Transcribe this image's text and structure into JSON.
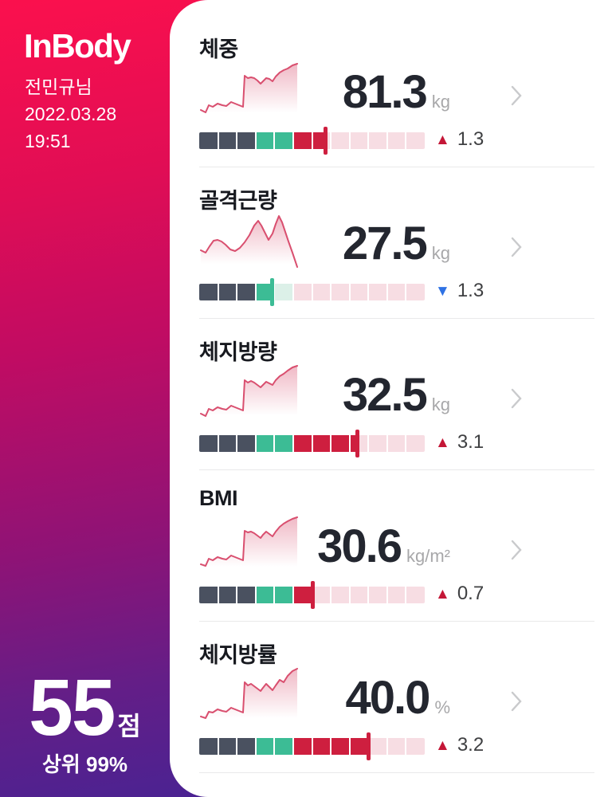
{
  "sidebar": {
    "logo": "InBody",
    "user_name": "전민규님",
    "date": "2022.03.28",
    "time": "19:51",
    "score_value": "55",
    "score_unit": "점",
    "percentile": "상위 99%"
  },
  "colors": {
    "gradient_top": "#fb104d",
    "gradient_bottom": "#3c2598",
    "card_background": "#ffffff",
    "title_text": "#17191f",
    "value_text": "#23262f",
    "unit_text": "#a8a8aa",
    "divider": "#e9e9ea",
    "sparkline": "#d94f6f",
    "segment_dark": "#4a5160",
    "segment_green": "#3cbc95",
    "segment_red": "#ce1f3f",
    "segment_pale_pink": "#f7dde3",
    "segment_pale_green": "#dcf0e8",
    "increase": "#c41737",
    "decrease": "#2f72e4",
    "chevron": "#c9cacc"
  },
  "metrics": [
    {
      "title": "체중",
      "value": "81.3",
      "unit": "kg",
      "change_symbol": "▲",
      "change_value": "1.3",
      "change_color": "#c41737",
      "marker": 0.56,
      "marker_color": "#ce1f3f",
      "stops": [
        [
          "#4a5160",
          0.25
        ],
        [
          "#3cbc95",
          0.4167
        ],
        [
          "#ce1f3f",
          0.56
        ],
        [
          "#f7dde3",
          1
        ]
      ],
      "spark": [
        [
          2,
          62
        ],
        [
          8,
          65
        ],
        [
          12,
          56
        ],
        [
          17,
          58
        ],
        [
          23,
          54
        ],
        [
          29,
          56
        ],
        [
          34,
          57
        ],
        [
          40,
          52
        ],
        [
          45,
          54
        ],
        [
          50,
          56
        ],
        [
          55,
          58
        ],
        [
          57,
          19
        ],
        [
          61,
          22
        ],
        [
          65,
          21
        ],
        [
          69,
          22
        ],
        [
          73,
          25
        ],
        [
          77,
          29
        ],
        [
          80,
          26
        ],
        [
          84,
          22
        ],
        [
          88,
          23
        ],
        [
          92,
          26
        ],
        [
          96,
          20
        ],
        [
          101,
          15
        ],
        [
          106,
          12
        ],
        [
          111,
          10
        ],
        [
          117,
          6
        ],
        [
          123,
          4
        ]
      ]
    },
    {
      "title": "골격근량",
      "value": "27.5",
      "unit": "kg",
      "change_symbol": "▼",
      "change_value": "1.3",
      "change_color": "#2f72e4",
      "marker": 0.32,
      "marker_color": "#3cbc95",
      "stops": [
        [
          "#4a5160",
          0.25
        ],
        [
          "#3cbc95",
          0.32
        ],
        [
          "#dcf0e8",
          0.4167
        ],
        [
          "#f7dde3",
          1
        ]
      ],
      "spark": [
        [
          2,
          48
        ],
        [
          8,
          51
        ],
        [
          13,
          43
        ],
        [
          18,
          36
        ],
        [
          23,
          35
        ],
        [
          28,
          37
        ],
        [
          33,
          41
        ],
        [
          39,
          47
        ],
        [
          45,
          49
        ],
        [
          51,
          45
        ],
        [
          57,
          38
        ],
        [
          63,
          29
        ],
        [
          69,
          17
        ],
        [
          74,
          11
        ],
        [
          78,
          17
        ],
        [
          83,
          27
        ],
        [
          87,
          35
        ],
        [
          92,
          27
        ],
        [
          96,
          15
        ],
        [
          100,
          5
        ],
        [
          104,
          13
        ],
        [
          108,
          25
        ],
        [
          112,
          37
        ],
        [
          117,
          51
        ],
        [
          123,
          69
        ]
      ]
    },
    {
      "title": "체지방량",
      "value": "32.5",
      "unit": "kg",
      "change_symbol": "▲",
      "change_value": "3.1",
      "change_color": "#c41737",
      "marker": 0.7,
      "marker_color": "#ce1f3f",
      "stops": [
        [
          "#4a5160",
          0.25
        ],
        [
          "#3cbc95",
          0.4167
        ],
        [
          "#ce1f3f",
          0.7
        ],
        [
          "#f7dde3",
          1
        ]
      ],
      "spark": [
        [
          2,
          63
        ],
        [
          8,
          66
        ],
        [
          12,
          57
        ],
        [
          17,
          59
        ],
        [
          23,
          55
        ],
        [
          29,
          57
        ],
        [
          34,
          58
        ],
        [
          40,
          53
        ],
        [
          45,
          55
        ],
        [
          50,
          57
        ],
        [
          55,
          59
        ],
        [
          57,
          21
        ],
        [
          61,
          24
        ],
        [
          65,
          22
        ],
        [
          69,
          24
        ],
        [
          73,
          27
        ],
        [
          77,
          30
        ],
        [
          80,
          27
        ],
        [
          84,
          23
        ],
        [
          88,
          25
        ],
        [
          92,
          27
        ],
        [
          96,
          21
        ],
        [
          101,
          16
        ],
        [
          106,
          13
        ],
        [
          111,
          9
        ],
        [
          117,
          5
        ],
        [
          123,
          3
        ]
      ]
    },
    {
      "title": "BMI",
      "value": "30.6",
      "unit": "kg/m²",
      "change_symbol": "▲",
      "change_value": "0.7",
      "change_color": "#c41737",
      "marker": 0.5,
      "marker_color": "#ce1f3f",
      "stops": [
        [
          "#4a5160",
          0.25
        ],
        [
          "#3cbc95",
          0.4167
        ],
        [
          "#ce1f3f",
          0.5
        ],
        [
          "#f7dde3",
          1
        ]
      ],
      "spark": [
        [
          2,
          62
        ],
        [
          8,
          64
        ],
        [
          12,
          55
        ],
        [
          17,
          57
        ],
        [
          23,
          53
        ],
        [
          29,
          55
        ],
        [
          34,
          56
        ],
        [
          40,
          51
        ],
        [
          45,
          53
        ],
        [
          50,
          55
        ],
        [
          55,
          57
        ],
        [
          57,
          20
        ],
        [
          61,
          22
        ],
        [
          65,
          21
        ],
        [
          69,
          23
        ],
        [
          73,
          26
        ],
        [
          77,
          29
        ],
        [
          80,
          25
        ],
        [
          84,
          21
        ],
        [
          88,
          24
        ],
        [
          92,
          27
        ],
        [
          96,
          21
        ],
        [
          101,
          15
        ],
        [
          106,
          11
        ],
        [
          111,
          8
        ],
        [
          117,
          5
        ],
        [
          123,
          3
        ]
      ]
    },
    {
      "title": "체지방률",
      "value": "40.0",
      "unit": "%",
      "change_symbol": "▲",
      "change_value": "3.2",
      "change_color": "#c41737",
      "marker": 0.75,
      "marker_color": "#ce1f3f",
      "stops": [
        [
          "#4a5160",
          0.25
        ],
        [
          "#3cbc95",
          0.4167
        ],
        [
          "#ce1f3f",
          0.75
        ],
        [
          "#f7dde3",
          1
        ]
      ],
      "spark": [
        [
          2,
          63
        ],
        [
          8,
          65
        ],
        [
          12,
          57
        ],
        [
          17,
          58
        ],
        [
          23,
          54
        ],
        [
          29,
          56
        ],
        [
          34,
          57
        ],
        [
          40,
          52
        ],
        [
          45,
          54
        ],
        [
          50,
          56
        ],
        [
          55,
          58
        ],
        [
          57,
          20
        ],
        [
          61,
          24
        ],
        [
          65,
          22
        ],
        [
          69,
          25
        ],
        [
          73,
          28
        ],
        [
          77,
          31
        ],
        [
          80,
          27
        ],
        [
          84,
          22
        ],
        [
          88,
          26
        ],
        [
          92,
          30
        ],
        [
          96,
          24
        ],
        [
          101,
          17
        ],
        [
          106,
          20
        ],
        [
          111,
          12
        ],
        [
          117,
          6
        ],
        [
          123,
          3
        ]
      ]
    }
  ]
}
